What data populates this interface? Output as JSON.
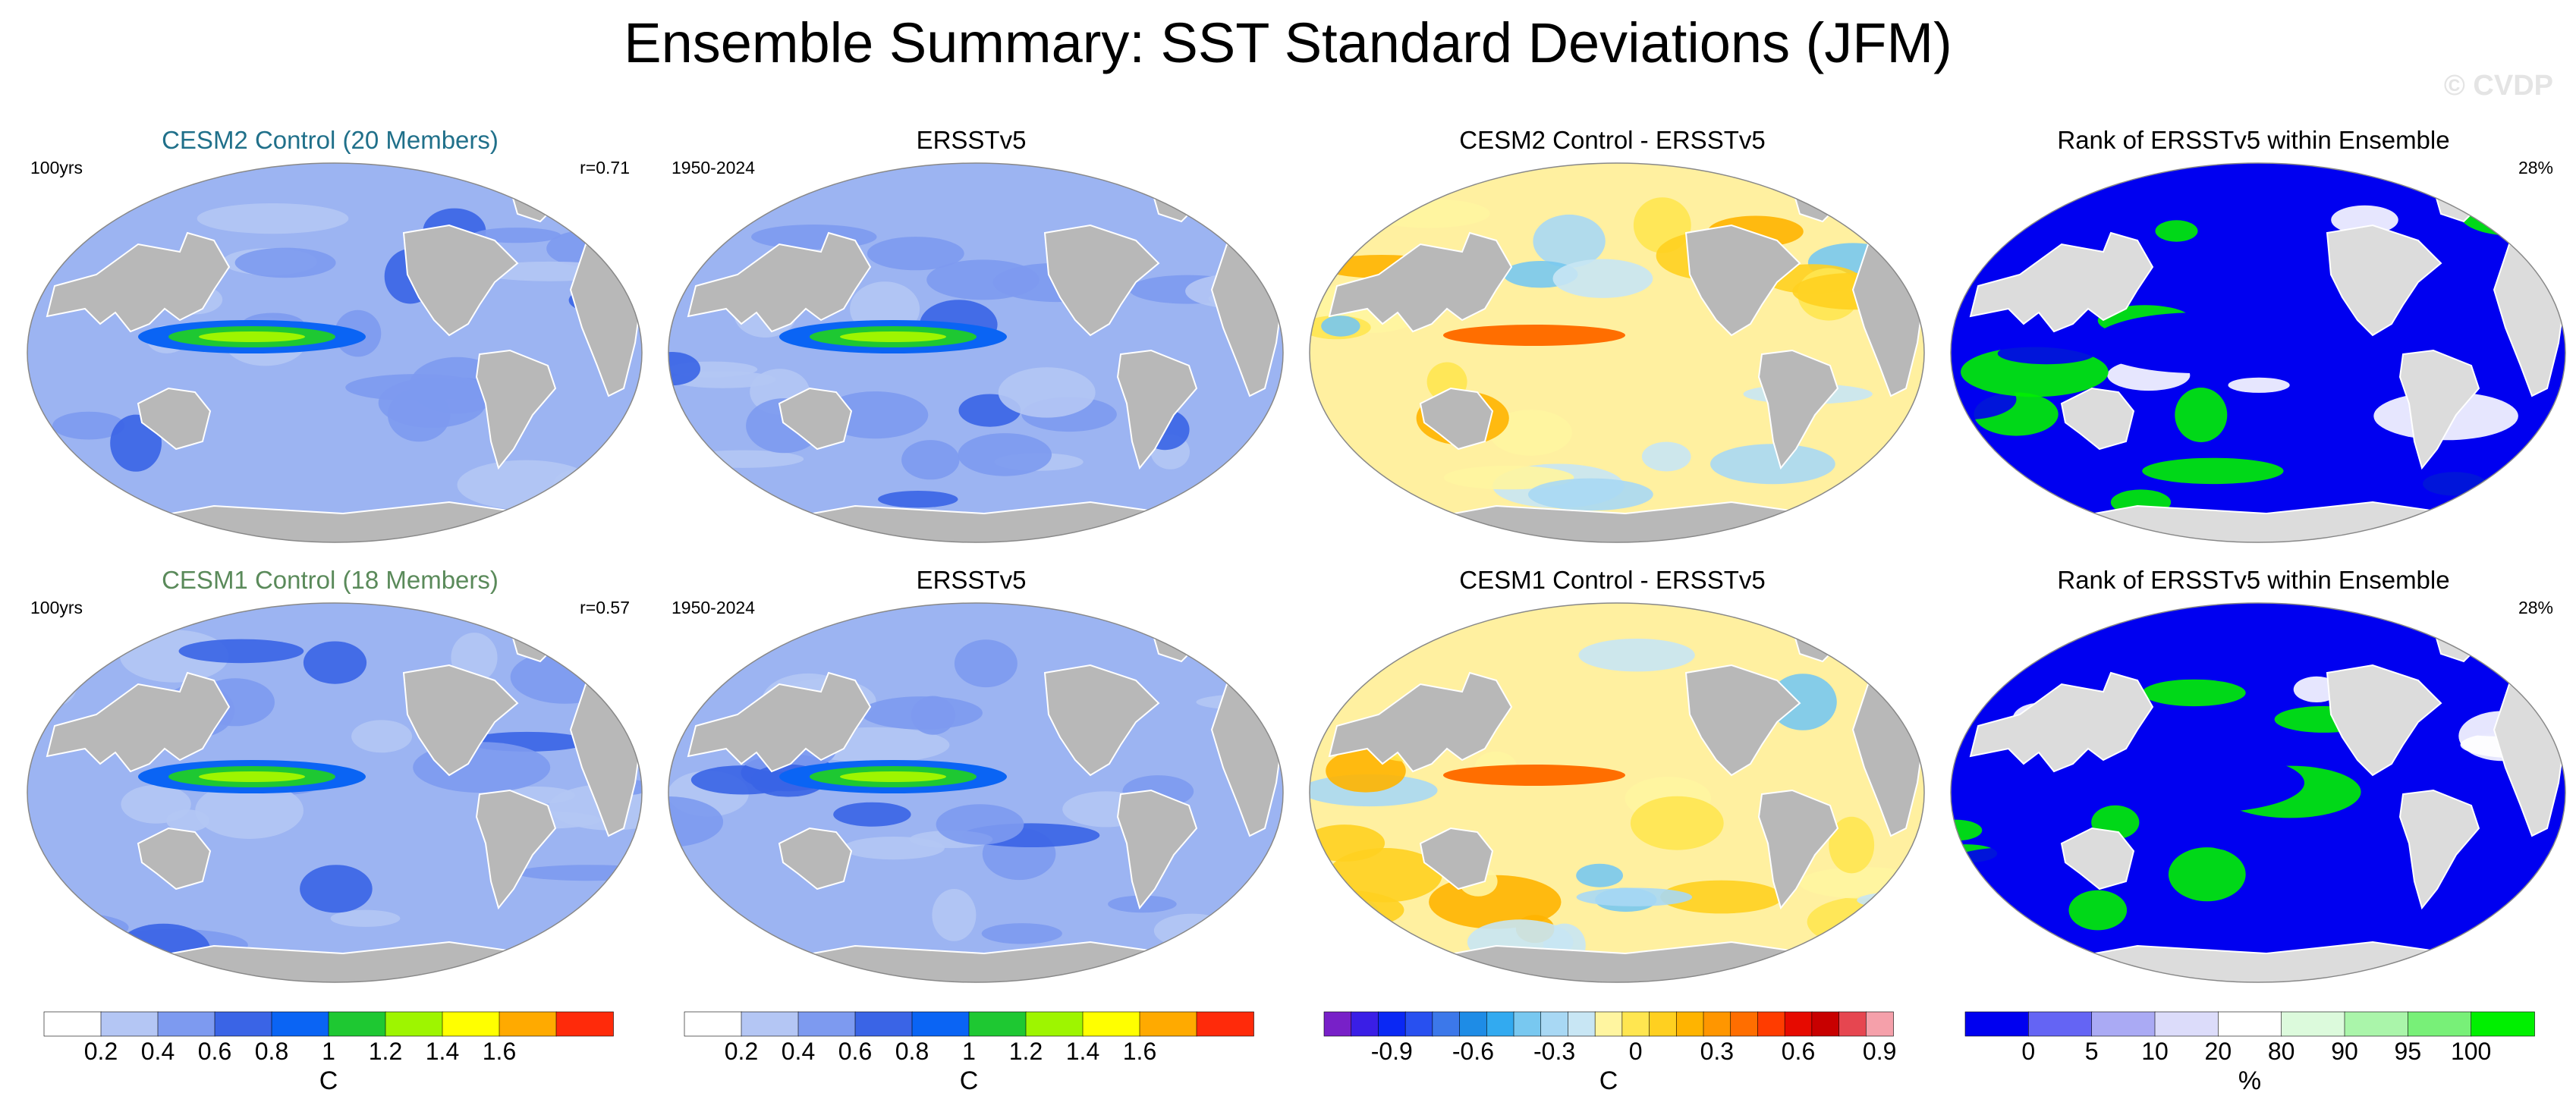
{
  "title": "Ensemble Summary: SST Standard Deviations (JFM)",
  "watermark": "© CVDP",
  "chart_data": [
    {
      "type": "heatmap",
      "row": 1,
      "col": 1,
      "title": "CESM2 Control (20 Members)",
      "title_color": "#20708a",
      "note_left": "100yrs",
      "note_right": "r=0.71",
      "variable": "SST standard deviation",
      "units": "C",
      "scheme": "std",
      "member_count": 20,
      "pattern_correlation": 0.71
    },
    {
      "type": "heatmap",
      "row": 1,
      "col": 2,
      "title": "ERSSTv5",
      "title_color": "#000000",
      "note_left": "1950-2024",
      "note_right": "",
      "variable": "SST standard deviation",
      "units": "C",
      "scheme": "std",
      "period": "1950-2024"
    },
    {
      "type": "heatmap",
      "row": 1,
      "col": 3,
      "title": "CESM2 Control - ERSSTv5",
      "title_color": "#000000",
      "note_left": "",
      "note_right": "",
      "variable": "SST standard deviation difference",
      "units": "C",
      "scheme": "diff"
    },
    {
      "type": "heatmap",
      "row": 1,
      "col": 4,
      "title": "Rank of ERSSTv5 within Ensemble",
      "title_color": "#000000",
      "note_left": "",
      "note_right": "28%",
      "variable": "rank",
      "units": "%",
      "scheme": "rank",
      "summary_percent": 28
    },
    {
      "type": "heatmap",
      "row": 2,
      "col": 1,
      "title": "CESM1 Control (18 Members)",
      "title_color": "#5a8a5a",
      "note_left": "100yrs",
      "note_right": "r=0.57",
      "variable": "SST standard deviation",
      "units": "C",
      "scheme": "std",
      "member_count": 18,
      "pattern_correlation": 0.57
    },
    {
      "type": "heatmap",
      "row": 2,
      "col": 2,
      "title": "ERSSTv5",
      "title_color": "#000000",
      "note_left": "1950-2024",
      "note_right": "",
      "variable": "SST standard deviation",
      "units": "C",
      "scheme": "std",
      "period": "1950-2024"
    },
    {
      "type": "heatmap",
      "row": 2,
      "col": 3,
      "title": "CESM1 Control - ERSSTv5",
      "title_color": "#000000",
      "note_left": "",
      "note_right": "",
      "variable": "SST standard deviation difference",
      "units": "C",
      "scheme": "diff"
    },
    {
      "type": "heatmap",
      "row": 2,
      "col": 4,
      "title": "Rank of ERSSTv5 within Ensemble",
      "title_color": "#000000",
      "note_left": "",
      "note_right": "28%",
      "variable": "rank",
      "units": "%",
      "scheme": "rank",
      "summary_percent": 28
    }
  ],
  "colorbars": [
    {
      "id": "std-1",
      "unit": "C",
      "levels": [
        0.2,
        0.4,
        0.6,
        0.8,
        1,
        1.2,
        1.4,
        1.6
      ],
      "tick_labels": [
        "0.2",
        "0.4",
        "0.6",
        "0.8",
        "1",
        "1.2",
        "1.4",
        "1.6"
      ],
      "colors": [
        "#ffffff",
        "#b4c6f4",
        "#7d9af0",
        "#3a64e6",
        "#0a64f4",
        "#1ec832",
        "#9ef500",
        "#ffff00",
        "#ffaa00",
        "#ff2a0a"
      ]
    },
    {
      "id": "std-2",
      "unit": "C",
      "levels": [
        0.2,
        0.4,
        0.6,
        0.8,
        1,
        1.2,
        1.4,
        1.6
      ],
      "tick_labels": [
        "0.2",
        "0.4",
        "0.6",
        "0.8",
        "1",
        "1.2",
        "1.4",
        "1.6"
      ],
      "colors": [
        "#ffffff",
        "#b4c6f4",
        "#7d9af0",
        "#3a64e6",
        "#0a64f4",
        "#1ec832",
        "#9ef500",
        "#ffff00",
        "#ffaa00",
        "#ff2a0a"
      ]
    },
    {
      "id": "diff",
      "unit": "C",
      "levels": [
        -0.9,
        -0.6,
        -0.3,
        0,
        0.3,
        0.6,
        0.9
      ],
      "tick_labels": [
        "-0.9",
        "-0.6",
        "-0.3",
        "0",
        "0.3",
        "0.6",
        "0.9"
      ],
      "colors": [
        "#7820c8",
        "#3a1ee6",
        "#0a28f4",
        "#2850f0",
        "#3c78ea",
        "#1e8ce6",
        "#32aaf0",
        "#78c8f0",
        "#a8d8f4",
        "#c8e6f4",
        "#fff5a0",
        "#ffe650",
        "#ffd020",
        "#ffb400",
        "#ff9600",
        "#ff6e00",
        "#ff3c00",
        "#e60a00",
        "#c80000",
        "#e64650",
        "#f5a0aa"
      ]
    },
    {
      "id": "rank",
      "unit": "%",
      "levels": [
        0,
        5,
        10,
        20,
        80,
        90,
        95,
        100
      ],
      "tick_labels": [
        "0",
        "5",
        "10",
        "20",
        "80",
        "90",
        "95",
        "100"
      ],
      "colors": [
        "#0000f0",
        "#6464f4",
        "#aaaaf4",
        "#dcdcfa",
        "#ffffff",
        "#dcfadc",
        "#aaf5aa",
        "#78f078",
        "#00f000"
      ]
    }
  ]
}
